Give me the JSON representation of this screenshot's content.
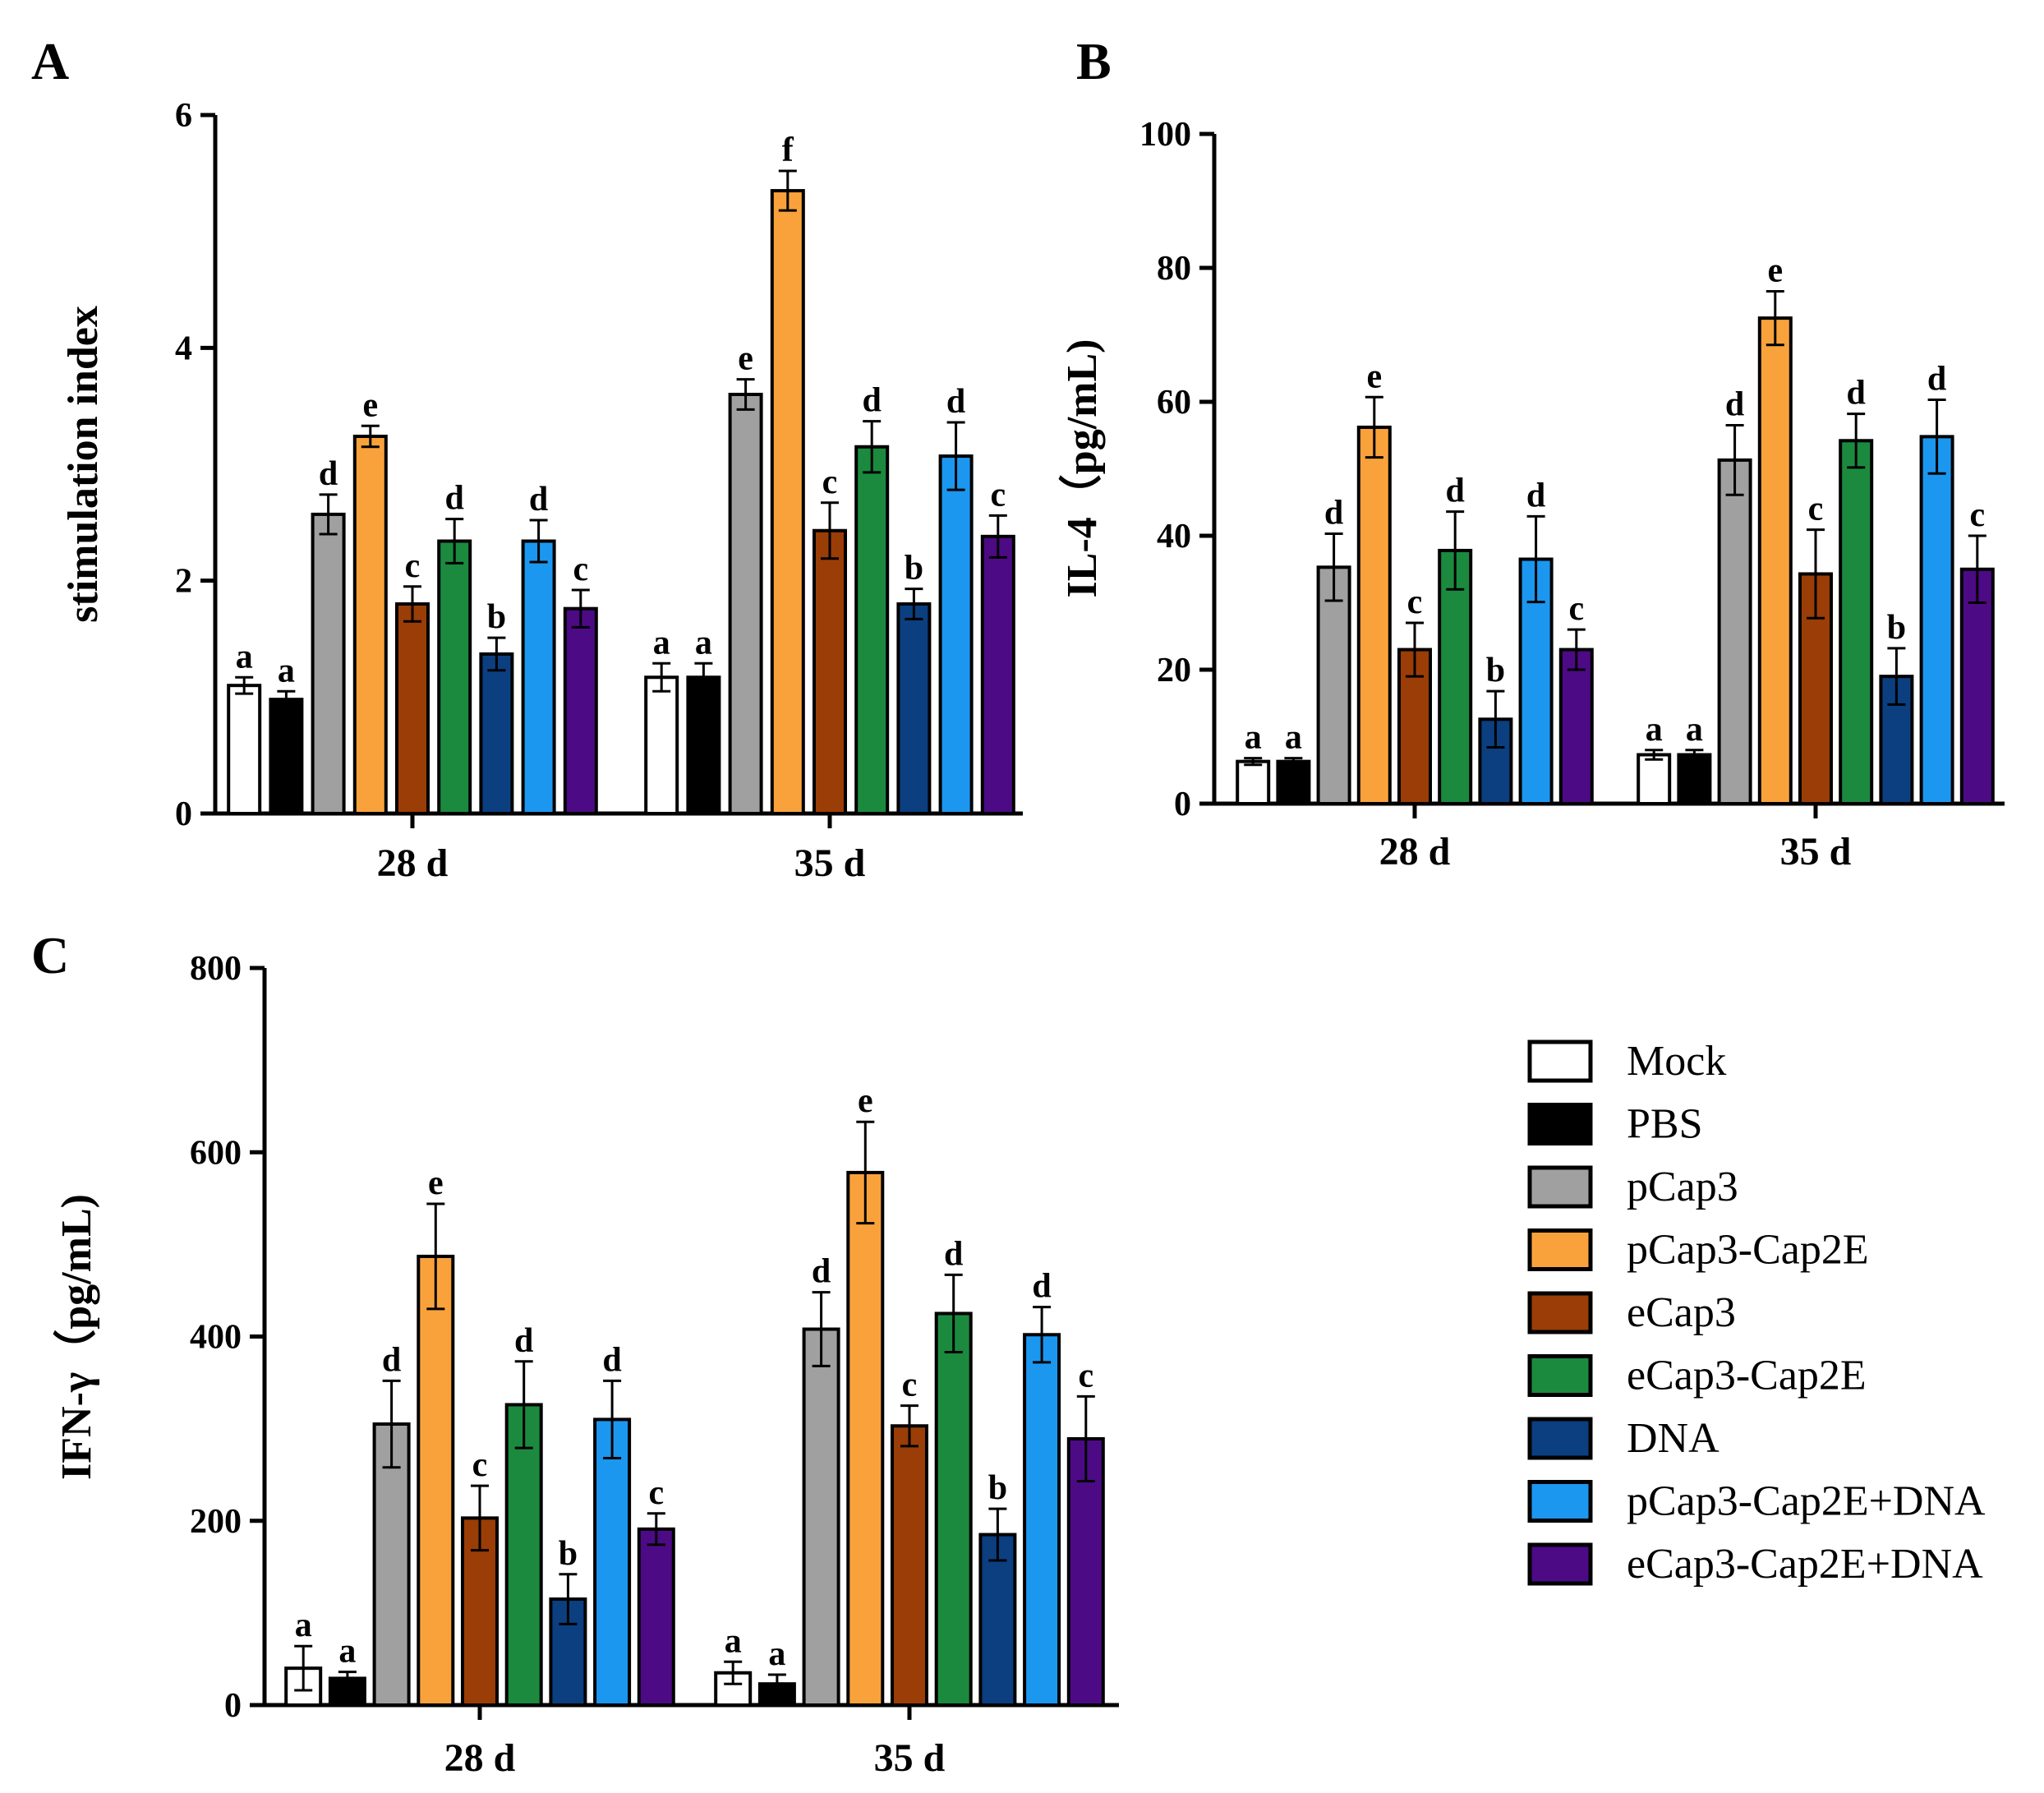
{
  "groups": [
    {
      "name": "Mock",
      "color": "#ffffff"
    },
    {
      "name": "PBS",
      "color": "#000000"
    },
    {
      "name": "pCap3",
      "color": "#a0a0a0"
    },
    {
      "name": "pCap3-Cap2E",
      "color": "#f9a23c"
    },
    {
      "name": "eCap3",
      "color": "#9a3d06"
    },
    {
      "name": "eCap3-Cap2E",
      "color": "#1b8a3f"
    },
    {
      "name": "DNA",
      "color": "#0b3f80"
    },
    {
      "name": "pCap3-Cap2E+DNA",
      "color": "#1c97f0"
    },
    {
      "name": "eCap3-Cap2E+DNA",
      "color": "#4d0a85"
    }
  ],
  "chart_data": [
    {
      "panel": "A",
      "type": "bar",
      "ylabel": "stimulation index",
      "ylim": [
        0,
        6
      ],
      "yticks": [
        0,
        2,
        4,
        6
      ],
      "categories": [
        "28 d",
        "35 d"
      ],
      "series": [
        {
          "name": "Mock",
          "values": [
            1.1,
            1.17
          ],
          "errors": [
            0.07,
            0.12
          ],
          "letters": [
            "a",
            "a"
          ]
        },
        {
          "name": "PBS",
          "values": [
            0.98,
            1.17
          ],
          "errors": [
            0.07,
            0.12
          ],
          "letters": [
            "a",
            "a"
          ]
        },
        {
          "name": "pCap3",
          "values": [
            2.57,
            3.6
          ],
          "errors": [
            0.17,
            0.13
          ],
          "letters": [
            "d",
            "e"
          ]
        },
        {
          "name": "pCap3-Cap2E",
          "values": [
            3.24,
            5.35
          ],
          "errors": [
            0.09,
            0.17
          ],
          "letters": [
            "e",
            "f"
          ]
        },
        {
          "name": "eCap3",
          "values": [
            1.8,
            2.43
          ],
          "errors": [
            0.15,
            0.24
          ],
          "letters": [
            "c",
            "c"
          ]
        },
        {
          "name": "eCap3-Cap2E",
          "values": [
            2.34,
            3.15
          ],
          "errors": [
            0.19,
            0.22
          ],
          "letters": [
            "d",
            "d"
          ]
        },
        {
          "name": "DNA",
          "values": [
            1.37,
            1.8
          ],
          "errors": [
            0.14,
            0.13
          ],
          "letters": [
            "b",
            "b"
          ]
        },
        {
          "name": "pCap3-Cap2E+DNA",
          "values": [
            2.34,
            3.07
          ],
          "errors": [
            0.18,
            0.29
          ],
          "letters": [
            "d",
            "d"
          ]
        },
        {
          "name": "eCap3-Cap2E+DNA",
          "values": [
            1.76,
            2.38
          ],
          "errors": [
            0.16,
            0.18
          ],
          "letters": [
            "c",
            "c"
          ]
        }
      ]
    },
    {
      "panel": "B",
      "type": "bar",
      "ylabel": "IL-4（pg/mL)",
      "ylim": [
        0,
        100
      ],
      "yticks": [
        0,
        20,
        40,
        60,
        80,
        100
      ],
      "categories": [
        "28 d",
        "35 d"
      ],
      "series": [
        {
          "name": "Mock",
          "values": [
            6.3,
            7.3
          ],
          "errors": [
            0.5,
            0.7
          ],
          "letters": [
            "a",
            "a"
          ]
        },
        {
          "name": "PBS",
          "values": [
            6.3,
            7.3
          ],
          "errors": [
            0.5,
            0.7
          ],
          "letters": [
            "a",
            "a"
          ]
        },
        {
          "name": "pCap3",
          "values": [
            35.3,
            51.3
          ],
          "errors": [
            5.0,
            5.2
          ],
          "letters": [
            "d",
            "d"
          ]
        },
        {
          "name": "pCap3-Cap2E",
          "values": [
            56.2,
            72.5
          ],
          "errors": [
            4.5,
            4.0
          ],
          "letters": [
            "e",
            "e"
          ]
        },
        {
          "name": "eCap3",
          "values": [
            23.0,
            34.3
          ],
          "errors": [
            4.0,
            6.6
          ],
          "letters": [
            "c",
            "c"
          ]
        },
        {
          "name": "eCap3-Cap2E",
          "values": [
            37.8,
            54.2
          ],
          "errors": [
            5.8,
            4.0
          ],
          "letters": [
            "d",
            "d"
          ]
        },
        {
          "name": "DNA",
          "values": [
            12.6,
            19.0
          ],
          "errors": [
            4.2,
            4.2
          ],
          "letters": [
            "b",
            "b"
          ]
        },
        {
          "name": "pCap3-Cap2E+DNA",
          "values": [
            36.5,
            54.8
          ],
          "errors": [
            6.4,
            5.5
          ],
          "letters": [
            "d",
            "d"
          ]
        },
        {
          "name": "eCap3-Cap2E+DNA",
          "values": [
            23.0,
            35.0
          ],
          "errors": [
            3.0,
            5.0
          ],
          "letters": [
            "c",
            "c"
          ]
        }
      ]
    },
    {
      "panel": "C",
      "type": "bar",
      "ylabel": "IFN-γ（pg/mL)",
      "ylim": [
        0,
        800
      ],
      "yticks": [
        0,
        200,
        400,
        600,
        800
      ],
      "categories": [
        "28 d",
        "35 d"
      ],
      "series": [
        {
          "name": "Mock",
          "values": [
            40,
            35
          ],
          "errors": [
            24,
            12
          ],
          "letters": [
            "a",
            "a"
          ]
        },
        {
          "name": "PBS",
          "values": [
            29,
            23
          ],
          "errors": [
            7,
            10
          ],
          "letters": [
            "a",
            "a"
          ]
        },
        {
          "name": "pCap3",
          "values": [
            305,
            408
          ],
          "errors": [
            47,
            40
          ],
          "letters": [
            "d",
            "d"
          ]
        },
        {
          "name": "pCap3-Cap2E",
          "values": [
            487,
            578
          ],
          "errors": [
            57,
            55
          ],
          "letters": [
            "e",
            "e"
          ]
        },
        {
          "name": "eCap3",
          "values": [
            203,
            303
          ],
          "errors": [
            35,
            22
          ],
          "letters": [
            "c",
            "c"
          ]
        },
        {
          "name": "eCap3-Cap2E",
          "values": [
            326,
            425
          ],
          "errors": [
            47,
            42
          ],
          "letters": [
            "d",
            "d"
          ]
        },
        {
          "name": "DNA",
          "values": [
            115,
            185
          ],
          "errors": [
            27,
            28
          ],
          "letters": [
            "b",
            "b"
          ]
        },
        {
          "name": "pCap3-Cap2E+DNA",
          "values": [
            310,
            402
          ],
          "errors": [
            42,
            30
          ],
          "letters": [
            "d",
            "d"
          ]
        },
        {
          "name": "eCap3-Cap2E+DNA",
          "values": [
            191,
            289
          ],
          "errors": [
            17,
            46
          ],
          "letters": [
            "c",
            "c"
          ]
        }
      ]
    }
  ]
}
